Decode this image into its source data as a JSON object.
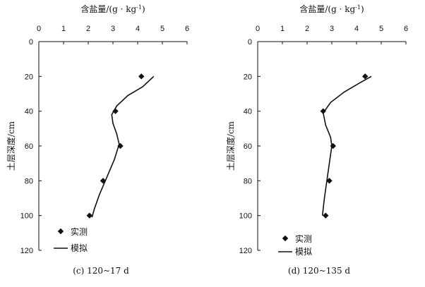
{
  "chart_data": [
    {
      "type": "scatter",
      "xlabel": "含盐量/(g · kg",
      "xlabel_sup": "-1",
      "xlabel_end": ")",
      "ylabel": "土层深度/cm",
      "xlim": [
        0,
        6
      ],
      "ylim": [
        0,
        120
      ],
      "x_ticks": [
        "0",
        "1",
        "2",
        "3",
        "4",
        "5",
        "6"
      ],
      "y_ticks": [
        "0",
        "20",
        "40",
        "60",
        "80",
        "100",
        "120"
      ],
      "legend": [
        "实测",
        "模拟"
      ],
      "caption": "(c) 120~17 d",
      "series": [
        {
          "name": "实测",
          "kind": "marker",
          "points": [
            [
              4.15,
              20
            ],
            [
              3.1,
              40
            ],
            [
              3.3,
              60
            ],
            [
              2.6,
              80
            ],
            [
              2.05,
              100
            ]
          ]
        },
        {
          "name": "模拟",
          "kind": "line",
          "points": [
            [
              4.65,
              20
            ],
            [
              4.2,
              26
            ],
            [
              3.6,
              31
            ],
            [
              3.15,
              37
            ],
            [
              2.95,
              42
            ],
            [
              3.0,
              47
            ],
            [
              3.15,
              53
            ],
            [
              3.25,
              59
            ],
            [
              3.05,
              68
            ],
            [
              2.75,
              78
            ],
            [
              2.45,
              88
            ],
            [
              2.25,
              96
            ],
            [
              2.15,
              101
            ]
          ]
        }
      ]
    },
    {
      "type": "scatter",
      "xlabel": "含盐量/(g · kg",
      "xlabel_sup": "-1",
      "xlabel_end": ")",
      "ylabel": "土层深度/cm",
      "xlim": [
        0,
        6
      ],
      "ylim": [
        0,
        120
      ],
      "x_ticks": [
        "0",
        "1",
        "2",
        "3",
        "4",
        "5",
        "6"
      ],
      "y_ticks": [
        "0",
        "20",
        "40",
        "60",
        "80",
        "100",
        "120"
      ],
      "legend": [
        "实测",
        "模拟"
      ],
      "caption": "(d) 120~135 d",
      "series": [
        {
          "name": "实测",
          "kind": "marker",
          "points": [
            [
              4.35,
              20
            ],
            [
              2.65,
              40
            ],
            [
              3.05,
              60
            ],
            [
              2.9,
              80
            ],
            [
              2.75,
              100
            ]
          ]
        },
        {
          "name": "模拟",
          "kind": "line",
          "points": [
            [
              4.6,
              20
            ],
            [
              4.1,
              24
            ],
            [
              3.5,
              29
            ],
            [
              2.95,
              35
            ],
            [
              2.65,
              41
            ],
            [
              2.75,
              48
            ],
            [
              2.95,
              55
            ],
            [
              3.0,
              60
            ],
            [
              2.9,
              70
            ],
            [
              2.8,
              80
            ],
            [
              2.7,
              90
            ],
            [
              2.62,
              100
            ]
          ]
        }
      ]
    }
  ]
}
